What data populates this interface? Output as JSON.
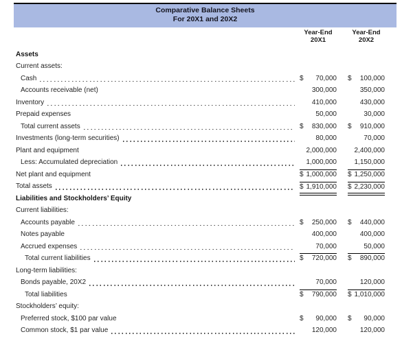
{
  "colors": {
    "banner_bg": "#a9b9e2",
    "top_rule": "#000000",
    "text": "#212121"
  },
  "title": {
    "line1": "Comparative Balance Sheets",
    "line2": "For 20X1 and 20X2"
  },
  "columns": [
    {
      "line1": "Year-End",
      "line2": "20X1"
    },
    {
      "line1": "Year-End",
      "line2": "20X2"
    }
  ],
  "rows": [
    {
      "label": "Assets",
      "style": "section",
      "indent": 0
    },
    {
      "label": "Current assets:",
      "indent": 0
    },
    {
      "label": "Cash",
      "indent": 1,
      "dots": true,
      "d1": "$",
      "v1": "70,000",
      "d2": "$",
      "v2": "100,000"
    },
    {
      "label": "Accounts receivable (net)",
      "indent": 1,
      "v1": "300,000",
      "v2": "350,000"
    },
    {
      "label": "Inventory",
      "indent": 0,
      "dots": true,
      "v1": "410,000",
      "v2": "430,000"
    },
    {
      "label": "Prepaid expenses",
      "indent": 0,
      "v1": "50,000",
      "v2": "30,000"
    },
    {
      "label": "Total current assets",
      "indent": 1,
      "dots": true,
      "d1": "$",
      "v1": "830,000",
      "d2": "$",
      "v2": "910,000"
    },
    {
      "label": "Investments (long-term securities)",
      "indent": 0,
      "dots": true,
      "v1": "80,000",
      "v2": "70,000"
    },
    {
      "label": "Plant and equipment",
      "indent": 0,
      "v1": "2,000,000",
      "v2": "2,400,000"
    },
    {
      "label": "Less: Accumulated depreciation",
      "indent": 1,
      "dots": true,
      "v1": "1,000,000",
      "v2": "1,150,000"
    },
    {
      "label": "Net plant and equipment",
      "indent": 0,
      "d1": "$",
      "v1": "1,000,000",
      "d2": "$",
      "v2": "1,250,000",
      "rule": "top"
    },
    {
      "label": "Total assets",
      "indent": 0,
      "dots": true,
      "d1": "$",
      "v1": "1,910,000",
      "d2": "$",
      "v2": "2,230,000",
      "rule": "top-double"
    },
    {
      "label": "Liabilities and Stockholders’ Equity",
      "style": "section",
      "indent": 0
    },
    {
      "label": "Current liabilities:",
      "indent": 0
    },
    {
      "label": "Accounts payable",
      "indent": 1,
      "dots": true,
      "d1": "$",
      "v1": "250,000",
      "d2": "$",
      "v2": "440,000"
    },
    {
      "label": "Notes payable",
      "indent": 1,
      "v1": "400,000",
      "v2": "400,000"
    },
    {
      "label": "Accrued expenses",
      "indent": 1,
      "dots": true,
      "v1": "70,000",
      "v2": "50,000"
    },
    {
      "label": "Total current liabilities",
      "indent": 2,
      "dots": true,
      "d1": "$",
      "v1": "720,000",
      "d2": "$",
      "v2": "890,000",
      "rule": "top"
    },
    {
      "label": "Long-term liabilities:",
      "indent": 0
    },
    {
      "label": "Bonds payable, 20X2",
      "indent": 1,
      "dots": true,
      "v1": "70,000",
      "v2": "120,000"
    },
    {
      "label": "Total liabilities",
      "indent": 2,
      "d1": "$",
      "v1": "790,000",
      "d2": "$",
      "v2": "1,010,000",
      "rule": "top"
    },
    {
      "label": "Stockholders’ equity:",
      "indent": 0
    },
    {
      "label": "Preferred stock, $100 par value",
      "indent": 1,
      "d1": "$",
      "v1": "90,000",
      "d2": "$",
      "v2": "90,000"
    },
    {
      "label": "Common stock, $1 par value",
      "indent": 1,
      "dots": true,
      "v1": "120,000",
      "v2": "120,000"
    }
  ]
}
